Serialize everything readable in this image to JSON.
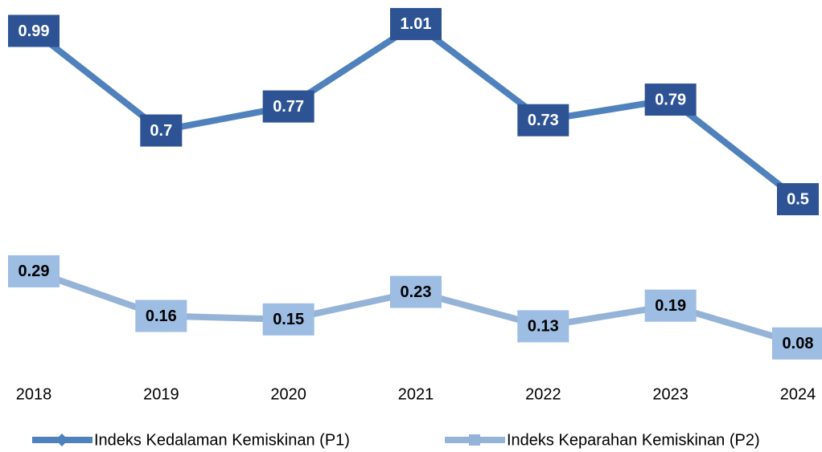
{
  "chart_data": {
    "type": "line",
    "categories": [
      "2018",
      "2019",
      "2020",
      "2021",
      "2022",
      "2023",
      "2024"
    ],
    "series": [
      {
        "name": "Indeks Kedalaman Kemiskinan (P1)",
        "color": "#4f81bd",
        "label_color": "#2e5395",
        "label_text_color": "#ffffff",
        "marker": "diamond",
        "values": [
          0.99,
          0.7,
          0.77,
          1.01,
          0.73,
          0.79,
          0.5
        ]
      },
      {
        "name": "Indeks Keparahan Kemiskinan (P2)",
        "color": "#95b3d7",
        "label_color": "#9dbde3",
        "label_text_color": "#000000",
        "marker": "square",
        "values": [
          0.29,
          0.16,
          0.15,
          0.23,
          0.13,
          0.19,
          0.08
        ]
      }
    ],
    "ylim": [
      0,
      1.08
    ],
    "legend": "bottom"
  }
}
